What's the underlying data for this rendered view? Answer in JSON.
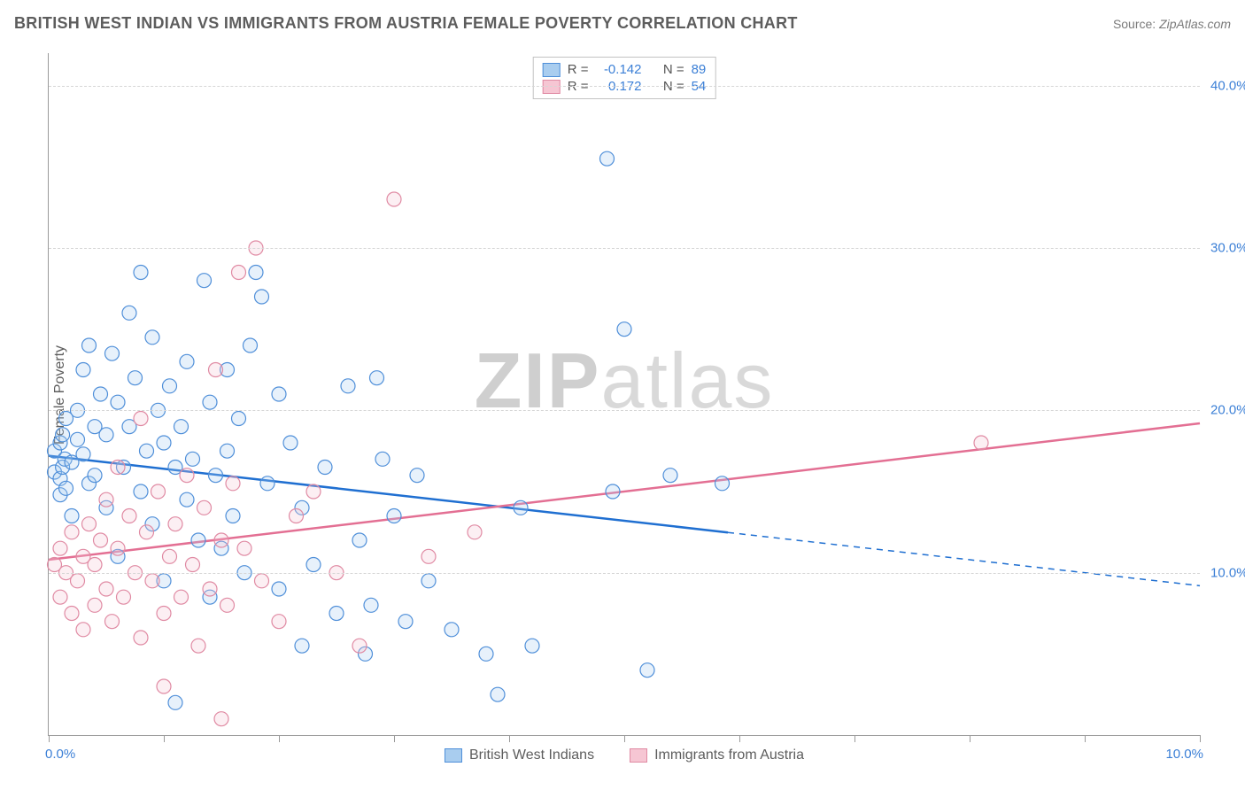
{
  "header": {
    "title": "BRITISH WEST INDIAN VS IMMIGRANTS FROM AUSTRIA FEMALE POVERTY CORRELATION CHART",
    "source_prefix": "Source: ",
    "source_name": "ZipAtlas.com"
  },
  "watermark": {
    "part1": "ZIP",
    "part2": "atlas"
  },
  "chart": {
    "type": "scatter",
    "y_axis_title": "Female Poverty",
    "xlim": [
      0,
      10
    ],
    "ylim": [
      0,
      42
    ],
    "x_ticks": [
      0,
      1,
      2,
      3,
      4,
      5,
      6,
      7,
      8,
      9,
      10
    ],
    "x_left_label": "0.0%",
    "x_right_label": "10.0%",
    "y_ticks": [
      10,
      20,
      30,
      40
    ],
    "y_tick_labels": [
      "10.0%",
      "20.0%",
      "30.0%",
      "40.0%"
    ],
    "grid_color": "#d6d6d6",
    "axis_color": "#9a9a9a",
    "background_color": "#ffffff",
    "axis_label_color": "#3b7fd6",
    "marker_radius": 8,
    "marker_stroke_width": 1.2,
    "marker_fill_opacity": 0.28,
    "trend_line_width": 2.5,
    "series": [
      {
        "name": "British West Indians",
        "color_stroke": "#4f8fd9",
        "color_fill": "#a9cdef",
        "color_line": "#1f6fd1",
        "R": "-0.142",
        "N": "89",
        "trend": {
          "y_at_x0": 17.2,
          "y_at_x10": 9.2,
          "solid_until_x": 5.9
        },
        "points": [
          [
            0.05,
            17.5
          ],
          [
            0.05,
            16.2
          ],
          [
            0.1,
            18.0
          ],
          [
            0.1,
            15.8
          ],
          [
            0.1,
            14.8
          ],
          [
            0.12,
            16.5
          ],
          [
            0.12,
            18.5
          ],
          [
            0.14,
            17.0
          ],
          [
            0.15,
            15.2
          ],
          [
            0.15,
            19.5
          ],
          [
            0.2,
            16.8
          ],
          [
            0.2,
            13.5
          ],
          [
            0.25,
            18.2
          ],
          [
            0.25,
            20.0
          ],
          [
            0.3,
            17.3
          ],
          [
            0.3,
            22.5
          ],
          [
            0.35,
            24.0
          ],
          [
            0.35,
            15.5
          ],
          [
            0.4,
            19.0
          ],
          [
            0.4,
            16.0
          ],
          [
            0.45,
            21.0
          ],
          [
            0.5,
            18.5
          ],
          [
            0.5,
            14.0
          ],
          [
            0.55,
            23.5
          ],
          [
            0.6,
            20.5
          ],
          [
            0.6,
            11.0
          ],
          [
            0.65,
            16.5
          ],
          [
            0.7,
            26.0
          ],
          [
            0.7,
            19.0
          ],
          [
            0.75,
            22.0
          ],
          [
            0.8,
            15.0
          ],
          [
            0.8,
            28.5
          ],
          [
            0.85,
            17.5
          ],
          [
            0.9,
            24.5
          ],
          [
            0.9,
            13.0
          ],
          [
            0.95,
            20.0
          ],
          [
            1.0,
            18.0
          ],
          [
            1.0,
            9.5
          ],
          [
            1.05,
            21.5
          ],
          [
            1.1,
            16.5
          ],
          [
            1.1,
            2.0
          ],
          [
            1.15,
            19.0
          ],
          [
            1.2,
            23.0
          ],
          [
            1.2,
            14.5
          ],
          [
            1.25,
            17.0
          ],
          [
            1.3,
            12.0
          ],
          [
            1.35,
            28.0
          ],
          [
            1.4,
            20.5
          ],
          [
            1.4,
            8.5
          ],
          [
            1.45,
            16.0
          ],
          [
            1.5,
            11.5
          ],
          [
            1.55,
            22.5
          ],
          [
            1.55,
            17.5
          ],
          [
            1.6,
            13.5
          ],
          [
            1.65,
            19.5
          ],
          [
            1.7,
            10.0
          ],
          [
            1.75,
            24.0
          ],
          [
            1.8,
            28.5
          ],
          [
            1.85,
            27.0
          ],
          [
            1.9,
            15.5
          ],
          [
            2.0,
            9.0
          ],
          [
            2.0,
            21.0
          ],
          [
            2.1,
            18.0
          ],
          [
            2.2,
            5.5
          ],
          [
            2.2,
            14.0
          ],
          [
            2.3,
            10.5
          ],
          [
            2.4,
            16.5
          ],
          [
            2.5,
            7.5
          ],
          [
            2.6,
            21.5
          ],
          [
            2.7,
            12.0
          ],
          [
            2.75,
            5.0
          ],
          [
            2.8,
            8.0
          ],
          [
            2.85,
            22.0
          ],
          [
            2.9,
            17.0
          ],
          [
            3.0,
            13.5
          ],
          [
            3.1,
            7.0
          ],
          [
            3.2,
            16.0
          ],
          [
            3.3,
            9.5
          ],
          [
            3.5,
            6.5
          ],
          [
            3.8,
            5.0
          ],
          [
            3.9,
            2.5
          ],
          [
            4.1,
            14.0
          ],
          [
            4.2,
            5.5
          ],
          [
            4.85,
            35.5
          ],
          [
            4.9,
            15.0
          ],
          [
            5.0,
            25.0
          ],
          [
            5.2,
            4.0
          ],
          [
            5.4,
            16.0
          ],
          [
            5.85,
            15.5
          ]
        ]
      },
      {
        "name": "Immigrants from Austria",
        "color_stroke": "#e08aa3",
        "color_fill": "#f6c6d3",
        "color_line": "#e36f93",
        "R": "0.172",
        "N": "54",
        "trend": {
          "y_at_x0": 10.8,
          "y_at_x10": 19.2,
          "solid_until_x": 10
        },
        "points": [
          [
            0.05,
            10.5
          ],
          [
            0.1,
            11.5
          ],
          [
            0.1,
            8.5
          ],
          [
            0.15,
            10.0
          ],
          [
            0.2,
            12.5
          ],
          [
            0.2,
            7.5
          ],
          [
            0.25,
            9.5
          ],
          [
            0.3,
            11.0
          ],
          [
            0.3,
            6.5
          ],
          [
            0.35,
            13.0
          ],
          [
            0.4,
            8.0
          ],
          [
            0.4,
            10.5
          ],
          [
            0.45,
            12.0
          ],
          [
            0.5,
            9.0
          ],
          [
            0.5,
            14.5
          ],
          [
            0.55,
            7.0
          ],
          [
            0.6,
            11.5
          ],
          [
            0.6,
            16.5
          ],
          [
            0.65,
            8.5
          ],
          [
            0.7,
            13.5
          ],
          [
            0.75,
            10.0
          ],
          [
            0.8,
            6.0
          ],
          [
            0.8,
            19.5
          ],
          [
            0.85,
            12.5
          ],
          [
            0.9,
            9.5
          ],
          [
            0.95,
            15.0
          ],
          [
            1.0,
            7.5
          ],
          [
            1.0,
            3.0
          ],
          [
            1.05,
            11.0
          ],
          [
            1.1,
            13.0
          ],
          [
            1.15,
            8.5
          ],
          [
            1.2,
            16.0
          ],
          [
            1.25,
            10.5
          ],
          [
            1.3,
            5.5
          ],
          [
            1.35,
            14.0
          ],
          [
            1.4,
            9.0
          ],
          [
            1.45,
            22.5
          ],
          [
            1.5,
            12.0
          ],
          [
            1.5,
            1.0
          ],
          [
            1.55,
            8.0
          ],
          [
            1.6,
            15.5
          ],
          [
            1.65,
            28.5
          ],
          [
            1.7,
            11.5
          ],
          [
            1.8,
            30.0
          ],
          [
            1.85,
            9.5
          ],
          [
            2.0,
            7.0
          ],
          [
            2.15,
            13.5
          ],
          [
            2.3,
            15.0
          ],
          [
            2.5,
            10.0
          ],
          [
            2.7,
            5.5
          ],
          [
            3.0,
            33.0
          ],
          [
            3.3,
            11.0
          ],
          [
            3.7,
            12.5
          ],
          [
            8.1,
            18.0
          ]
        ]
      }
    ]
  }
}
